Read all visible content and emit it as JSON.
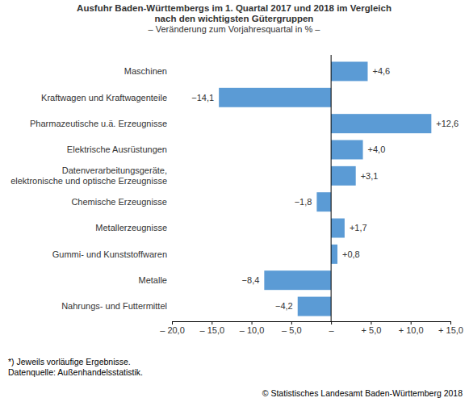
{
  "chart_data": {
    "type": "bar",
    "orientation": "horizontal",
    "title": "Ausfuhr Baden-Württembergs im 1. Quartal 2017 und 2018 im Vergleich\nnach den wichtigsten Gütergruppen",
    "subtitle": "– Veränderung zum Vorjahresquartal in % –",
    "categories": [
      "Maschinen",
      "Kraftwagen und Kraftwagenteile",
      "Pharmazeutische u.ä. Erzeugnisse",
      "Elektrische Ausrüstungen",
      "Datenverarbeitungsgeräte,\nelektronische und optische Erzeugnisse",
      "Chemische Erzeugnisse",
      "Metallerzeugnisse",
      "Gummi- und Kunststoffwaren",
      "Metalle",
      "Nahrungs- und Futtermittel"
    ],
    "values": [
      4.6,
      -14.1,
      12.6,
      4.0,
      3.1,
      -1.8,
      1.7,
      0.8,
      -8.4,
      -4.2
    ],
    "value_labels": [
      "+4,6",
      "−14,1",
      "+12,6",
      "+4,0",
      "+3,1",
      "−1,8",
      "+1,7",
      "+0,8",
      "−8,4",
      "−4,2"
    ],
    "data_labels": true,
    "color": "#5b9bd5",
    "xlim": [
      -20,
      15
    ],
    "xticks": [
      {
        "value": -20,
        "label": "– 20,0"
      },
      {
        "value": -15,
        "label": "– 15,0"
      },
      {
        "value": -10,
        "label": "– 10,0"
      },
      {
        "value": -5,
        "label": "– 5,0"
      },
      {
        "value": 0,
        "label": "–"
      },
      {
        "value": 5,
        "label": "+ 5,0"
      },
      {
        "value": 10,
        "label": "+ 10,0"
      },
      {
        "value": 15,
        "label": "+ 15,0"
      }
    ],
    "grid": false,
    "notes": [
      "*) Jeweils vorläufige Ergebnisse.",
      "Datenquelle: Außenhandelsstatistik."
    ],
    "credit": "© Statistisches Landesamt Baden-Württemberg 2018"
  }
}
